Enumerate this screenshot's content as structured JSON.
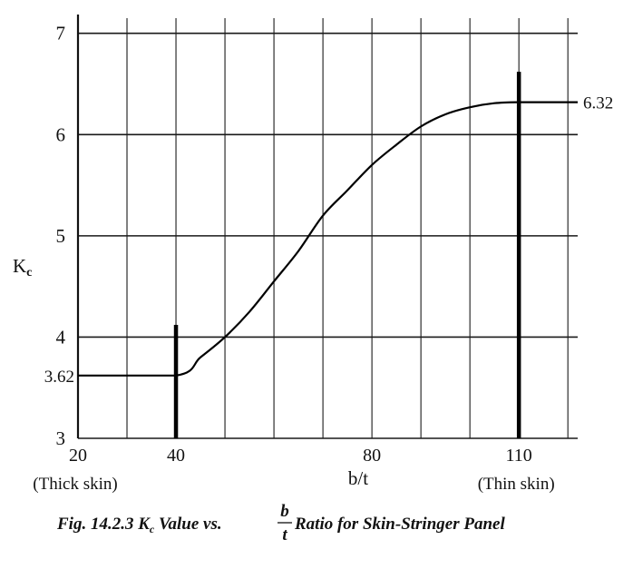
{
  "chart_data": {
    "type": "line",
    "xlabel": "b/t",
    "ylabel_main": "K",
    "ylabel_sub": "c",
    "xlim": [
      20,
      122
    ],
    "ylim": [
      3,
      7.15
    ],
    "x_ticks": [
      20,
      40,
      80,
      110
    ],
    "x_tick_labels": [
      "20",
      "40",
      "80",
      "110"
    ],
    "x_grid": [
      20,
      30,
      40,
      50,
      60,
      70,
      80,
      90,
      100,
      110,
      120
    ],
    "y_ticks": [
      3,
      4,
      5,
      6,
      7
    ],
    "y_tick_labels": [
      "3",
      "4",
      "5",
      "6",
      "7"
    ],
    "grid": true,
    "x_notes": [
      {
        "x": 20,
        "text": "(Thick skin)"
      },
      {
        "x": 110,
        "text": "(Thin skin)"
      }
    ],
    "series": [
      {
        "x": [
          20,
          40,
          45,
          50,
          55,
          60,
          65,
          70,
          75,
          80,
          85,
          90,
          95,
          100,
          105,
          110,
          122
        ],
        "y": [
          3.62,
          3.62,
          3.8,
          4.0,
          4.25,
          4.55,
          4.85,
          5.2,
          5.45,
          5.7,
          5.9,
          6.08,
          6.2,
          6.27,
          6.31,
          6.32,
          6.32
        ]
      }
    ],
    "marked_lines": [
      {
        "x": 40,
        "y_from": 3,
        "y_to": 4.12
      },
      {
        "x": 110,
        "y_from": 3,
        "y_to": 6.62
      }
    ],
    "annotations": [
      {
        "text": "3.62",
        "value": 3.62,
        "side": "left"
      },
      {
        "text": "6.32",
        "value": 6.32,
        "side": "right"
      }
    ],
    "caption": {
      "prefix": "Fig. 14.2.3  K",
      "sub": "c",
      "middle": " Value vs. ",
      "frac_num": "b",
      "frac_den": "t",
      "suffix": " Ratio for Skin-Stringer Panel"
    }
  }
}
